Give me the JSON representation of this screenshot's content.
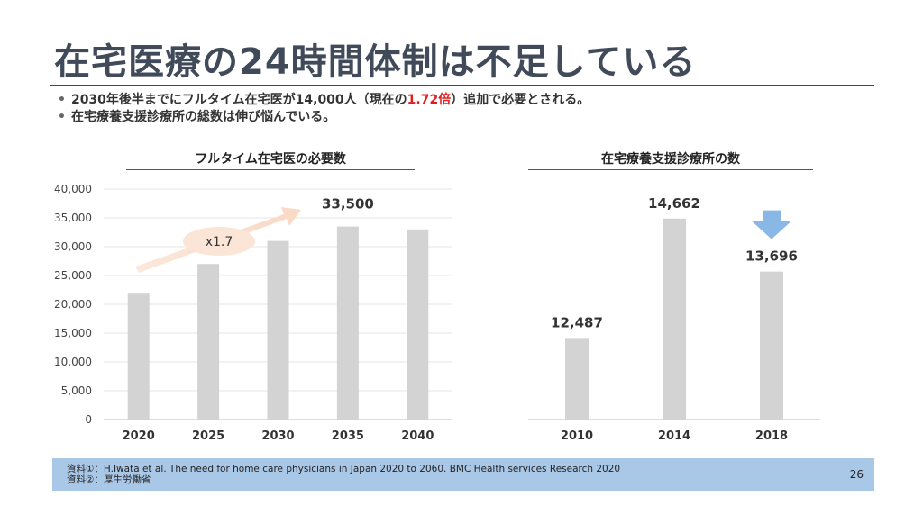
{
  "slide": {
    "title": "在宅医療の24時間体制は不足している",
    "bullets": [
      {
        "before": "2030年後半までにフルタイム在宅医が14,000人（現在の",
        "highlight": "1.72倍",
        "after": "）追加で必要とされる。"
      },
      {
        "before": "在宅療養支援診療所の総数は伸び悩んでいる。",
        "highlight": "",
        "after": ""
      }
    ],
    "footer": {
      "line1": "資料①：H.Iwata et al. The need for home care physicians in Japan 2020 to 2060. BMC Health services Research 2020",
      "line2": "資料②：厚生労働省",
      "page_number": "26"
    },
    "colors": {
      "bar": "#d3d3d3",
      "arrow": "#f8d9c4",
      "down_arrow": "#8ab8e6",
      "highlight": "#e02020",
      "title": "#404a59",
      "footer_bg": "#a9c7e6"
    }
  },
  "chart_data": [
    {
      "type": "bar",
      "title": "フルタイム在宅医の必要数",
      "categories": [
        "2020",
        "2025",
        "2030",
        "2035",
        "2040"
      ],
      "values": [
        22000,
        27000,
        31000,
        33500,
        33000
      ],
      "ylim": [
        0,
        40000
      ],
      "yticks": [
        "0",
        "5,000",
        "10,000",
        "15,000",
        "20,000",
        "25,000",
        "30,000",
        "35,000",
        "40,000"
      ],
      "grid": true,
      "data_labels": [
        {
          "index": 3,
          "text": "33,500"
        }
      ],
      "annotation": {
        "text": "x1.7",
        "icon": "upward-trend-arrow"
      }
    },
    {
      "type": "bar",
      "title": "在宅療養支援診療所の数",
      "categories": [
        "2010",
        "2014",
        "2018"
      ],
      "values": [
        12487,
        14662,
        13696
      ],
      "ylim": [
        11000,
        15200
      ],
      "grid": false,
      "data_labels": [
        {
          "index": 0,
          "text": "12,487"
        },
        {
          "index": 1,
          "text": "14,662"
        },
        {
          "index": 2,
          "text": "13,696"
        }
      ],
      "annotation": {
        "icon": "down-arrow-icon",
        "index": 2
      }
    }
  ]
}
